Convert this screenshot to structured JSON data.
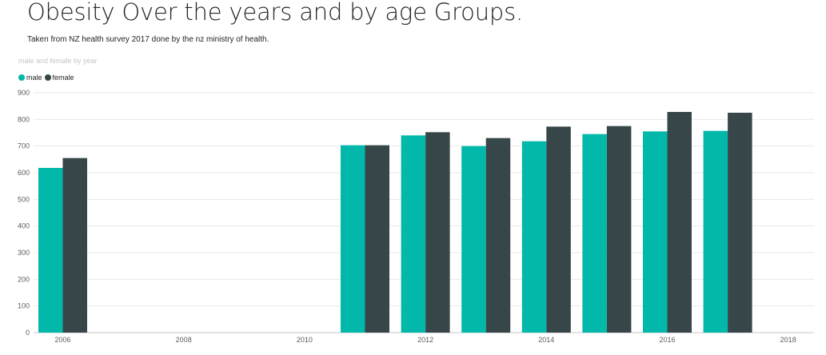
{
  "page": {
    "title": "Obesity Over the years and by age Groups.",
    "subtitle": "Taken from NZ health survey 2017 done by the nz ministry of health."
  },
  "chart_data": {
    "type": "bar",
    "title": "male and female by year",
    "xlabel": "",
    "ylabel": "",
    "x": [
      2006,
      2011,
      2012,
      2013,
      2014,
      2015,
      2016,
      2017
    ],
    "series": [
      {
        "name": "male",
        "color": "#01b8aa",
        "values": [
          618,
          703,
          740,
          700,
          718,
          745,
          755,
          757
        ]
      },
      {
        "name": "female",
        "color": "#374649",
        "values": [
          655,
          703,
          752,
          730,
          773,
          775,
          828,
          825
        ]
      }
    ],
    "xlim": [
      2006,
      2018
    ],
    "x_ticks": [
      2006,
      2008,
      2010,
      2012,
      2014,
      2016,
      2018
    ],
    "ylim": [
      0,
      900
    ],
    "y_ticks": [
      0,
      100,
      200,
      300,
      400,
      500,
      600,
      700,
      800,
      900
    ],
    "grid": true,
    "legend_position": "top-left"
  }
}
